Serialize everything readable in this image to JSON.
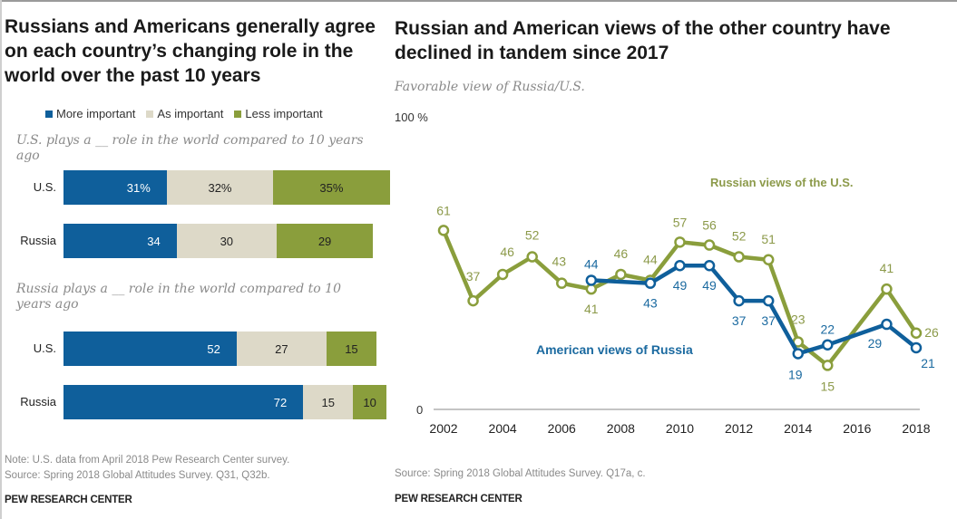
{
  "left": {
    "title": "Russians and Americans generally agree on each country’s changing role in the world over the past 10 years",
    "legend": [
      {
        "label": "More important",
        "color": "#0f5f9b"
      },
      {
        "label": "As important",
        "color": "#ddd9c8"
      },
      {
        "label": "Less important",
        "color": "#8a9e3c"
      }
    ],
    "note": "Note: U.S. data from April 2018 Pew Research Center survey.",
    "source": "Source: Spring 2018 Global Attitudes Survey. Q31, Q32b.",
    "brand": "PEW RESEARCH CENTER"
  },
  "right": {
    "title": "Russian and American views of the other country have declined in tandem since 2017",
    "subtitle": "Favorable view of Russia/U.S.",
    "source": "Source: Spring 2018 Global Attitudes Survey. Q17a, c.",
    "brand": "PEW RESEARCH CENTER"
  },
  "chart_data": [
    {
      "type": "bar",
      "orientation": "horizontal-stacked",
      "title": "Russians and Americans generally agree on each country’s changing role in the world over the past 10 years",
      "series_names": [
        "More important",
        "As important",
        "Less important"
      ],
      "colors": [
        "#0f5f9b",
        "#ddd9c8",
        "#8a9e3c"
      ],
      "groups": [
        {
          "question": "U.S. plays a __ role in the world compared to 10 years ago",
          "rows": [
            {
              "label": "U.S.",
              "values": [
                31,
                32,
                35
              ],
              "value_labels": [
                "31%",
                "32%",
                "35%"
              ]
            },
            {
              "label": "Russia",
              "values": [
                34,
                30,
                29
              ],
              "value_labels": [
                "34",
                "30",
                "29"
              ]
            }
          ]
        },
        {
          "question": "Russia plays a __ role in the world compared to 10 years ago",
          "rows": [
            {
              "label": "U.S.",
              "values": [
                52,
                27,
                15
              ],
              "value_labels": [
                "52",
                "27",
                "15"
              ]
            },
            {
              "label": "Russia",
              "values": [
                72,
                15,
                10
              ],
              "value_labels": [
                "72",
                "15",
                "10"
              ]
            }
          ]
        }
      ]
    },
    {
      "type": "line",
      "title": "Russian and American views of the other country have declined in tandem since 2017",
      "subtitle": "Favorable view of Russia/U.S.",
      "ylabel_top": "100 %",
      "ylabel_bottom": "0",
      "ylim": [
        0,
        100
      ],
      "xlim": [
        2002,
        2018
      ],
      "xticks": [
        "2002",
        "2004",
        "2006",
        "2008",
        "2010",
        "2012",
        "2014",
        "2016",
        "2018"
      ],
      "series": [
        {
          "name": "Russian views of the U.S.",
          "color": "#8a9e3c",
          "label_color": "#8c9a4a",
          "points": [
            {
              "x": 2002,
              "y": 61
            },
            {
              "x": 2003,
              "y": 37
            },
            {
              "x": 2004,
              "y": 46
            },
            {
              "x": 2005,
              "y": 52
            },
            {
              "x": 2006,
              "y": 43
            },
            {
              "x": 2007,
              "y": 41
            },
            {
              "x": 2008,
              "y": 46
            },
            {
              "x": 2009,
              "y": 44
            },
            {
              "x": 2010,
              "y": 57
            },
            {
              "x": 2011,
              "y": 56
            },
            {
              "x": 2012,
              "y": 52
            },
            {
              "x": 2013,
              "y": 51
            },
            {
              "x": 2014,
              "y": 23
            },
            {
              "x": 2015,
              "y": 15
            },
            {
              "x": 2017,
              "y": 41
            },
            {
              "x": 2018,
              "y": 26
            }
          ]
        },
        {
          "name": "American views of Russia",
          "color": "#0f5f9b",
          "label_color": "#1b6aa0",
          "points": [
            {
              "x": 2007,
              "y": 44
            },
            {
              "x": 2009,
              "y": 43
            },
            {
              "x": 2010,
              "y": 49
            },
            {
              "x": 2011,
              "y": 49
            },
            {
              "x": 2012,
              "y": 37
            },
            {
              "x": 2013,
              "y": 37
            },
            {
              "x": 2014,
              "y": 19
            },
            {
              "x": 2015,
              "y": 22
            },
            {
              "x": 2017,
              "y": 29
            },
            {
              "x": 2018,
              "y": 21
            }
          ]
        }
      ]
    }
  ]
}
